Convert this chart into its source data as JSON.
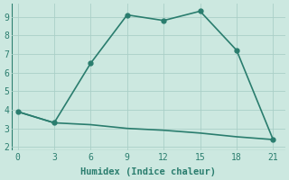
{
  "line1_x": [
    0,
    3,
    6,
    9,
    12,
    15,
    18,
    21
  ],
  "line1_y": [
    3.9,
    3.3,
    6.5,
    9.1,
    8.8,
    9.3,
    7.2,
    2.4
  ],
  "line2_x": [
    0,
    3,
    6,
    9,
    12,
    15,
    18,
    21
  ],
  "line2_y": [
    3.9,
    3.3,
    3.2,
    3.0,
    2.9,
    2.75,
    2.55,
    2.4
  ],
  "color": "#2a7d6e",
  "bg_color": "#cce8e0",
  "grid_color": "#aacfc7",
  "xlabel": "Humidex (Indice chaleur)",
  "xlim": [
    -0.5,
    22
  ],
  "ylim": [
    1.8,
    9.7
  ],
  "xticks": [
    0,
    3,
    6,
    9,
    12,
    15,
    18,
    21
  ],
  "yticks": [
    2,
    3,
    4,
    5,
    6,
    7,
    8,
    9
  ],
  "font": "monospace",
  "marker_size": 3.5,
  "linewidth": 1.2
}
